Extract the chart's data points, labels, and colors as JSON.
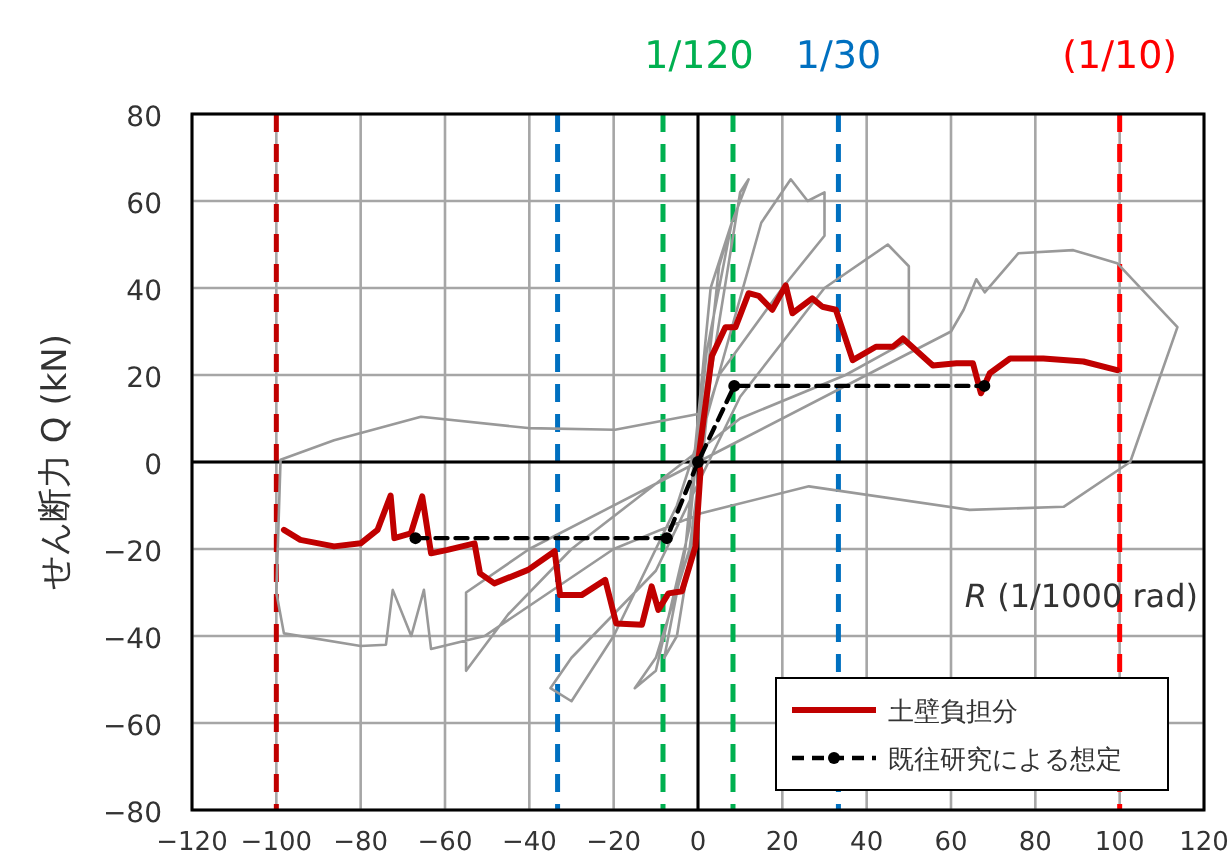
{
  "chart_data": {
    "type": "line",
    "xlabel": "R (1/1000 rad)",
    "ylabel": "せん断力 Q (kN)",
    "xlim": [
      -120,
      120
    ],
    "ylim": [
      -80,
      80
    ],
    "xticks": [
      -120,
      -100,
      -80,
      -60,
      -40,
      -20,
      0,
      20,
      40,
      60,
      80,
      100,
      120
    ],
    "yticks": [
      -80,
      -60,
      -40,
      -20,
      0,
      20,
      40,
      60,
      80
    ],
    "grid": true,
    "legend": "bottom right",
    "annotations": [
      "(1/10)",
      "1/30",
      "1/120"
    ],
    "ref_lines": [
      {
        "axis": "x",
        "value": -100,
        "label": null,
        "color": "#c00000",
        "line_style": "dashed"
      },
      {
        "axis": "x",
        "value": 100,
        "label": null,
        "color": "#ff0000",
        "line_style": "dashed"
      },
      {
        "axis": "x",
        "value": -33.3,
        "label": null,
        "color": "#0070c0",
        "line_style": "dashed"
      },
      {
        "axis": "x",
        "value": 33.3,
        "label": null,
        "color": "#0070c0",
        "line_style": "dashed"
      },
      {
        "axis": "x",
        "value": -8.3,
        "label": null,
        "color": "#00b050",
        "line_style": "dashed"
      },
      {
        "axis": "x",
        "value": 8.3,
        "label": null,
        "color": "#00b050",
        "line_style": "dashed"
      }
    ],
    "series": [
      {
        "color": "#999999",
        "marker": "none",
        "line_style": "solid",
        "x": [
          0,
          5,
          8,
          3,
          0,
          -3,
          -8,
          -5,
          0,
          3,
          10,
          12,
          8,
          2,
          -2,
          -10,
          -15,
          -10,
          -2,
          2,
          15,
          22,
          26,
          30,
          30,
          20,
          5,
          -5,
          -20,
          -30,
          -35,
          -30,
          -10,
          0,
          10,
          30,
          45,
          50,
          50,
          35,
          10,
          -10,
          -30,
          -45,
          -55,
          -55,
          -40,
          -10,
          10,
          40,
          60,
          63,
          66,
          68,
          76,
          89,
          99.4,
          113.7,
          102.5,
          86.7,
          64.4,
          26.3,
          1,
          -20,
          -50.6,
          -63.3,
          -65,
          -68,
          -72.4,
          -74,
          -80,
          -98.2,
          -100,
          -99,
          -86.3,
          -65.7,
          -40.3,
          -19.7,
          1
        ],
        "values": [
          0,
          45,
          55,
          40,
          10,
          -20,
          -45,
          -40,
          -10,
          20,
          62,
          65,
          55,
          25,
          -15,
          -48,
          -52,
          -45,
          -20,
          10,
          55,
          65,
          60,
          62,
          52,
          40,
          20,
          -10,
          -40,
          -55,
          -52,
          -45,
          -25,
          -5,
          15,
          40,
          50,
          45,
          28,
          20,
          10,
          -5,
          -20,
          -35,
          -48,
          -30,
          -20,
          -5,
          5,
          20,
          30,
          35,
          42,
          39,
          48,
          48.7,
          45.7,
          31,
          0,
          -10.3,
          -11,
          -5.6,
          -11.7,
          -20,
          -40,
          -43,
          -29.4,
          -40,
          -29.4,
          -42,
          -42.3,
          -39.4,
          -30,
          0.5,
          5,
          10.4,
          7.8,
          7.4,
          11.2
        ]
      },
      {
        "name": "土壁負担分",
        "color": "#c00000",
        "marker": "none",
        "line_style": "solid",
        "x": [
          -98.2,
          -94.3,
          -86.3,
          -80,
          -76,
          -72.9,
          -72,
          -68.1,
          -65.4,
          -63.3,
          -59.4,
          -53,
          -51.7,
          -48.3,
          -40.3,
          -34,
          -32.7,
          -27.6,
          -22,
          -19.4,
          -13.3,
          -11,
          -9.4,
          -7,
          -3.8,
          -0.6,
          0.6,
          0,
          3.3,
          6.5,
          8.9,
          12,
          14.4,
          17.6,
          20.8,
          22.4,
          27.1,
          29.5,
          32.7,
          36.7,
          42.2,
          46.2,
          48.6,
          55.7,
          61.3,
          65.2,
          67.1,
          69.2,
          74,
          81.9,
          91.4,
          99.4
        ],
        "values": [
          -15.6,
          -17.9,
          -19.4,
          -18.7,
          -15.6,
          -7.7,
          -17.5,
          -16.4,
          -7.9,
          -21,
          -20.2,
          -18.7,
          -25.6,
          -27.9,
          -24.8,
          -20.5,
          -30.6,
          -30.6,
          -27.1,
          -37.1,
          -37.4,
          -28.6,
          -34,
          -30.2,
          -29.7,
          -19.4,
          -2,
          0,
          24.4,
          31,
          31,
          38.8,
          38.2,
          35,
          40.6,
          34.2,
          37.6,
          35.7,
          35,
          23.4,
          26.5,
          26.5,
          28.4,
          22.2,
          22.7,
          22.7,
          15.8,
          20.4,
          23.8,
          23.8,
          23.1,
          21.1
        ]
      },
      {
        "name": "既往研究による想定",
        "color": "#000000",
        "marker": "circle",
        "line_style": "dashed",
        "x": [
          -67,
          -7.4,
          0,
          8.6,
          67.9
        ],
        "values": [
          -17.5,
          -17.5,
          0,
          17.5,
          17.5
        ]
      }
    ]
  }
}
